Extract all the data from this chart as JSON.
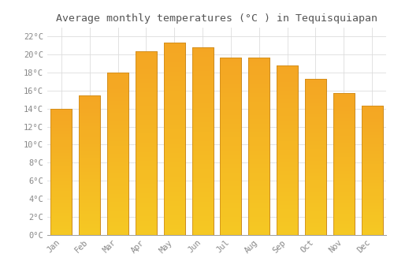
{
  "title": "Average monthly temperatures (°C ) in Tequisquiapan",
  "months": [
    "Jan",
    "Feb",
    "Mar",
    "Apr",
    "May",
    "Jun",
    "Jul",
    "Aug",
    "Sep",
    "Oct",
    "Nov",
    "Dec"
  ],
  "values": [
    14.0,
    15.5,
    18.0,
    20.4,
    21.3,
    20.8,
    19.7,
    19.7,
    18.8,
    17.3,
    15.7,
    14.3
  ],
  "bar_color_top": "#F5A623",
  "bar_color_bottom": "#F5C84A",
  "bar_edge_color": "#C8861A",
  "background_color": "#FFFFFF",
  "grid_color": "#DDDDDD",
  "title_fontsize": 9.5,
  "tick_fontsize": 7.5,
  "ylim": [
    0,
    23
  ],
  "yticks": [
    0,
    2,
    4,
    6,
    8,
    10,
    12,
    14,
    16,
    18,
    20,
    22
  ],
  "bar_width": 0.75
}
